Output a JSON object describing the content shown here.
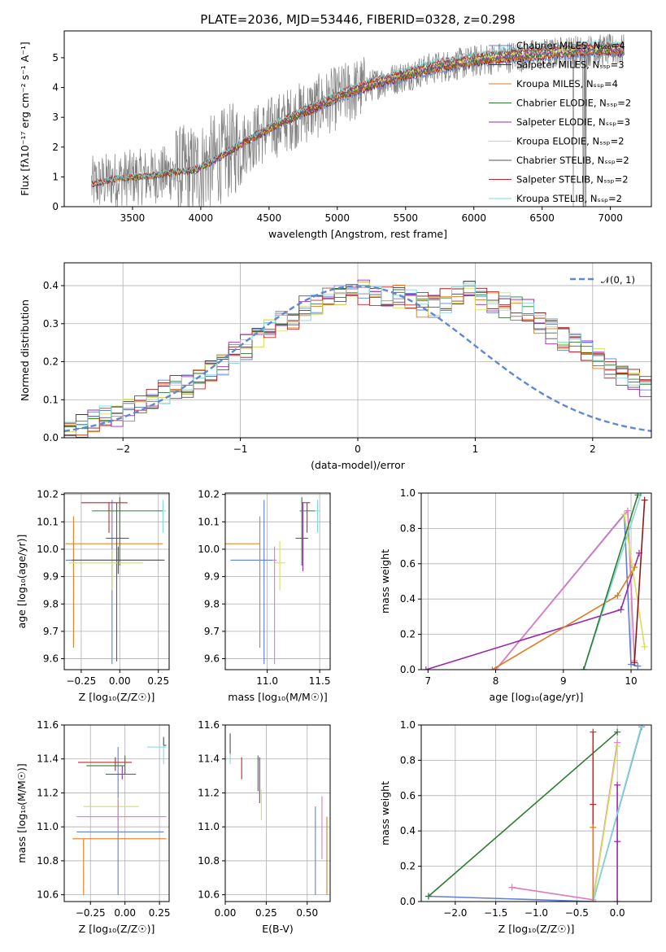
{
  "title": "PLATE=2036, MJD=53446, FIBERID=0328, z=0.298",
  "chart_data": [
    {
      "id": "spectrum",
      "type": "line",
      "xlabel": "wavelength [Angstrom, rest frame]",
      "ylabel": "Flux [fλ10⁻¹⁷ erg cm⁻² s⁻¹ A⁻¹]",
      "xlim": [
        3000,
        7300
      ],
      "ylim": [
        0,
        5.9
      ],
      "xticks": [
        3500,
        4000,
        4500,
        5000,
        5500,
        6000,
        6500,
        7000
      ],
      "yticks": [
        0,
        1,
        2,
        3,
        4,
        5
      ],
      "grid": false,
      "legend": "top-right",
      "data_range": [
        3200,
        7100
      ],
      "continuum_points": [
        [
          3200,
          0.75
        ],
        [
          3400,
          0.95
        ],
        [
          3600,
          1.0
        ],
        [
          3800,
          1.15
        ],
        [
          3950,
          1.2
        ],
        [
          4100,
          1.55
        ],
        [
          4300,
          2.1
        ],
        [
          4500,
          2.6
        ],
        [
          4700,
          3.05
        ],
        [
          4900,
          3.45
        ],
        [
          5100,
          3.85
        ],
        [
          5300,
          4.15
        ],
        [
          5500,
          4.4
        ],
        [
          5700,
          4.65
        ],
        [
          5900,
          4.8
        ],
        [
          6100,
          4.95
        ],
        [
          6300,
          5.05
        ],
        [
          6500,
          5.1
        ],
        [
          6700,
          5.2
        ],
        [
          6900,
          5.25
        ],
        [
          7100,
          5.25
        ]
      ],
      "series": [
        {
          "name": "Chabrier MILES, Nₛₛₚ=4",
          "color": "#5f7fd6"
        },
        {
          "name": "Salpeter MILES, Nₛₛₚ=3",
          "color": "#8b1a1a"
        },
        {
          "name": "Kroupa MILES, Nₛₛₚ=4",
          "color": "#e07b1f"
        },
        {
          "name": "Chabrier ELODIE, Nₛₛₚ=2",
          "color": "#2e7d32"
        },
        {
          "name": "Salpeter ELODIE, Nₛₛₚ=3",
          "color": "#9c27b0"
        },
        {
          "name": "Kroupa ELODIE, Nₛₛₚ=2",
          "color": "#d4e157"
        },
        {
          "name": "Chabrier STELIB, Nₛₛₚ=2",
          "color": "#555555"
        },
        {
          "name": "Salpeter STELIB, Nₛₛₚ=2",
          "color": "#c62828"
        },
        {
          "name": "Kroupa STELIB, Nₛₛₚ=2",
          "color": "#80d8d8"
        }
      ]
    },
    {
      "id": "residuals",
      "type": "histogram",
      "xlabel": "(data-model)/error",
      "ylabel": "Normed distribution",
      "xlim": [
        -2.5,
        2.5
      ],
      "ylim": [
        0,
        0.46
      ],
      "xticks": [
        -2,
        -1,
        0,
        1,
        2
      ],
      "yticks": [
        0.0,
        0.1,
        0.2,
        0.3,
        0.4
      ],
      "grid": true,
      "legend": "top-right",
      "reference": {
        "name": "𝒩(0, 1)",
        "color": "#5f87d6",
        "style": "dashed"
      },
      "bin_width": 0.1,
      "hist_colors": [
        "#5f7fd6",
        "#8b1a1a",
        "#e07b1f",
        "#2e7d32",
        "#9c27b0",
        "#d4e157",
        "#555555",
        "#c62828",
        "#80d8d8"
      ],
      "hist_profile": [
        0.02,
        0.03,
        0.04,
        0.05,
        0.06,
        0.07,
        0.09,
        0.1,
        0.12,
        0.13,
        0.14,
        0.16,
        0.18,
        0.2,
        0.22,
        0.24,
        0.26,
        0.28,
        0.3,
        0.32,
        0.34,
        0.35,
        0.36,
        0.37,
        0.37,
        0.38,
        0.38,
        0.37,
        0.37,
        0.36,
        0.35,
        0.34,
        0.36,
        0.37,
        0.38,
        0.37,
        0.36,
        0.35,
        0.34,
        0.33,
        0.3,
        0.28,
        0.26,
        0.24,
        0.23,
        0.21,
        0.19,
        0.17,
        0.16,
        0.14,
        0.12,
        0.11,
        0.1,
        0.09,
        0.08,
        0.07,
        0.06,
        0.05,
        0.05,
        0.04
      ]
    },
    {
      "id": "age_vs_Z",
      "type": "errorbar",
      "xlabel": "Z [log₁₀(Z/Z☉)]",
      "ylabel": "age  [log₁₀(age/yr)]",
      "xlim": [
        -0.36,
        0.32
      ],
      "ylim": [
        9.56,
        10.205
      ],
      "xticks": [
        -0.25,
        0.0,
        0.25
      ],
      "xticklabels": [
        "−0.25",
        "0.00",
        "0.25"
      ],
      "yticks": [
        9.6,
        9.7,
        9.8,
        9.9,
        10.0,
        10.1,
        10.2
      ],
      "grid": true,
      "points": [
        {
          "x": -0.05,
          "y": 9.96,
          "xerr": [
            0.3,
            0.33
          ],
          "yerr": [
            0.38,
            0.22
          ],
          "c": "#5f7fd6"
        },
        {
          "x": -0.07,
          "y": 10.17,
          "xerr": [
            0.18,
            0.12
          ],
          "yerr": [
            0.11,
            0.0
          ],
          "c": "#c62828"
        },
        {
          "x": -0.3,
          "y": 10.02,
          "xerr": [
            0.05,
            0.58
          ],
          "yerr": [
            0.38,
            0.1
          ],
          "c": "#e07b1f"
        },
        {
          "x": 0.0,
          "y": 10.14,
          "xerr": [
            0.18,
            0.28
          ],
          "yerr": [
            0.2,
            0.05
          ],
          "c": "#2e7d32"
        },
        {
          "x": -0.02,
          "y": 10.04,
          "xerr": [
            0.07,
            0.08
          ],
          "yerr": [
            0.45,
            0.13
          ],
          "c": "#9c27b0"
        },
        {
          "x": -0.05,
          "y": 9.95,
          "xerr": [
            0.28,
            0.2
          ],
          "yerr": [
            0.1,
            0.05
          ],
          "c": "#d4e157"
        },
        {
          "x": 0.28,
          "y": 10.14,
          "xerr": [
            0.0,
            0.02
          ],
          "yerr": [
            0.08,
            0.04
          ],
          "c": "#80d8d8"
        },
        {
          "x": -0.01,
          "y": 9.96,
          "xerr": [
            0.3,
            0.3
          ],
          "yerr": [
            0.05,
            0.05
          ],
          "c": "#555555"
        }
      ]
    },
    {
      "id": "age_vs_mass",
      "type": "errorbar",
      "xlabel": "mass [log₁₀(M/M☉)]",
      "ylabel": "",
      "xlim": [
        10.6,
        11.6
      ],
      "ylim": [
        9.56,
        10.205
      ],
      "xticks": [
        11.0,
        11.5
      ],
      "xticklabels": [
        "11.0",
        "11.5"
      ],
      "yticks": [
        9.6,
        9.7,
        9.8,
        9.9,
        10.0,
        10.1,
        10.2
      ],
      "grid": true,
      "points": [
        {
          "x": 10.97,
          "y": 9.96,
          "xerr": [
            0.32,
            0.1
          ],
          "yerr": [
            0.38,
            0.22
          ],
          "c": "#5f7fd6"
        },
        {
          "x": 11.38,
          "y": 10.17,
          "xerr": [
            0.05,
            0.03
          ],
          "yerr": [
            0.11,
            0.0
          ],
          "c": "#c62828"
        },
        {
          "x": 10.93,
          "y": 10.02,
          "xerr": [
            0.33,
            0.0
          ],
          "yerr": [
            0.38,
            0.1
          ],
          "c": "#e07b1f"
        },
        {
          "x": 11.33,
          "y": 10.14,
          "xerr": [
            0.02,
            0.13
          ],
          "yerr": [
            0.2,
            0.05
          ],
          "c": "#2e7d32"
        },
        {
          "x": 11.34,
          "y": 10.04,
          "xerr": [
            0.07,
            0.05
          ],
          "yerr": [
            0.12,
            0.13
          ],
          "c": "#9c27b0"
        },
        {
          "x": 11.12,
          "y": 9.95,
          "xerr": [
            0.05,
            0.05
          ],
          "yerr": [
            0.1,
            0.08
          ],
          "c": "#d4e157"
        },
        {
          "x": 11.07,
          "y": 9.96,
          "xerr": [
            0.02,
            0.02
          ],
          "yerr": [
            0.38,
            0.05
          ],
          "c": "#e377c2"
        },
        {
          "x": 11.48,
          "y": 10.14,
          "xerr": [
            0.03,
            0.02
          ],
          "yerr": [
            0.08,
            0.04
          ],
          "c": "#80d8d8"
        }
      ]
    },
    {
      "id": "weight_vs_age",
      "type": "line",
      "xlabel": "age  [log₁₀(age/yr)]",
      "ylabel": "mass weight",
      "xlim": [
        6.9,
        10.3
      ],
      "ylim": [
        0,
        1.0
      ],
      "xticks": [
        7,
        8,
        9,
        10
      ],
      "xticklabels": [
        "7",
        "8",
        "9",
        "10"
      ],
      "yticks": [
        0.0,
        0.2,
        0.4,
        0.6,
        0.8,
        1.0
      ],
      "grid": true,
      "lines": [
        {
          "c": "#5f7fd6",
          "pts": [
            [
              8.0,
              0.0
            ],
            [
              9.9,
              0.88
            ],
            [
              10.0,
              0.03
            ],
            [
              10.1,
              0.02
            ]
          ]
        },
        {
          "c": "#e377c2",
          "pts": [
            [
              8.0,
              0.0
            ],
            [
              9.95,
              0.9
            ],
            [
              10.05,
              0.05
            ]
          ]
        },
        {
          "c": "#9c27b0",
          "pts": [
            [
              6.97,
              0.0
            ],
            [
              9.85,
              0.34
            ],
            [
              10.12,
              0.66
            ]
          ]
        },
        {
          "c": "#e07b1f",
          "pts": [
            [
              7.95,
              0.0
            ],
            [
              9.8,
              0.42
            ],
            [
              10.05,
              0.58
            ]
          ]
        },
        {
          "c": "#d4e157",
          "pts": [
            [
              9.9,
              0.88
            ],
            [
              10.2,
              0.13
            ]
          ]
        },
        {
          "c": "#80d8d8",
          "pts": [
            [
              9.3,
              0.0
            ],
            [
              10.15,
              1.0
            ]
          ]
        },
        {
          "c": "#8b1a1a",
          "pts": [
            [
              10.05,
              0.04
            ],
            [
              10.2,
              0.96
            ]
          ]
        },
        {
          "c": "#2e7d32",
          "pts": [
            [
              9.3,
              0.0
            ],
            [
              10.1,
              0.99
            ]
          ]
        }
      ]
    },
    {
      "id": "mass_vs_Z",
      "type": "errorbar",
      "xlabel": "Z [log₁₀(Z/Z☉)]",
      "ylabel": "mass [log₁₀(M/M☉)]",
      "xlim": [
        -0.44,
        0.32
      ],
      "ylim": [
        10.56,
        11.6
      ],
      "xticks": [
        -0.25,
        0.0,
        0.25
      ],
      "xticklabels": [
        "−0.25",
        "0.00",
        "0.25"
      ],
      "yticks": [
        10.6,
        10.8,
        11.0,
        11.2,
        11.4,
        11.6
      ],
      "grid": true,
      "points": [
        {
          "x": -0.05,
          "y": 10.97,
          "xerr": [
            0.3,
            0.33
          ],
          "yerr": [
            0.37,
            0.5
          ],
          "c": "#5f7fd6"
        },
        {
          "x": -0.07,
          "y": 11.38,
          "xerr": [
            0.27,
            0.12
          ],
          "yerr": [
            0.05,
            0.03
          ],
          "c": "#c62828"
        },
        {
          "x": -0.3,
          "y": 10.93,
          "xerr": [
            0.08,
            0.6
          ],
          "yerr": [
            0.33,
            0.0
          ],
          "c": "#e07b1f"
        },
        {
          "x": 0.0,
          "y": 11.36,
          "xerr": [
            0.28,
            0.0
          ],
          "yerr": [
            0.05,
            0.06
          ],
          "c": "#2e7d32"
        },
        {
          "x": -0.02,
          "y": 11.31,
          "xerr": [
            0.12,
            0.1
          ],
          "yerr": [
            0.03,
            0.05
          ],
          "c": "#9c27b0"
        },
        {
          "x": -0.05,
          "y": 11.12,
          "xerr": [
            0.25,
            0.15
          ],
          "yerr": [
            0.05,
            0.05
          ],
          "c": "#d4e157"
        },
        {
          "x": -0.05,
          "y": 11.06,
          "xerr": [
            0.3,
            0.35
          ],
          "yerr": [
            0.1,
            0.1
          ],
          "c": "#e377c2"
        },
        {
          "x": 0.28,
          "y": 11.47,
          "xerr": [
            0.12,
            0.02
          ],
          "yerr": [
            0.1,
            0.05
          ],
          "c": "#80d8d8"
        },
        {
          "x": 0.28,
          "y": 11.48,
          "xerr": [
            0.0,
            0.02
          ],
          "yerr": [
            0.0,
            0.05
          ],
          "c": "#555555"
        }
      ]
    },
    {
      "id": "mass_vs_EBV",
      "type": "errorbar",
      "xlabel": "E(B-V)",
      "ylabel": "",
      "xlim": [
        0.0,
        0.64
      ],
      "ylim": [
        10.56,
        11.6
      ],
      "xticks": [
        0.0,
        0.25,
        0.5
      ],
      "xticklabels": [
        "0.00",
        "0.25",
        "0.50"
      ],
      "yticks": [
        10.6,
        10.8,
        11.0,
        11.2,
        11.4,
        11.6
      ],
      "grid": true,
      "points": [
        {
          "x": 0.55,
          "y": 10.97,
          "xerr": [
            0.0,
            0.0
          ],
          "yerr": [
            0.37,
            0.15
          ],
          "c": "#5f7fd6"
        },
        {
          "x": 0.1,
          "y": 11.38,
          "xerr": [
            0.0,
            0.0
          ],
          "yerr": [
            0.1,
            0.03
          ],
          "c": "#c62828"
        },
        {
          "x": 0.62,
          "y": 10.93,
          "xerr": [
            0.0,
            0.0
          ],
          "yerr": [
            0.33,
            0.13
          ],
          "c": "#e07b1f"
        },
        {
          "x": 0.2,
          "y": 11.36,
          "xerr": [
            0.0,
            0.0
          ],
          "yerr": [
            0.15,
            0.06
          ],
          "c": "#2e7d32"
        },
        {
          "x": 0.21,
          "y": 11.31,
          "xerr": [
            0.0,
            0.0
          ],
          "yerr": [
            0.17,
            0.1
          ],
          "c": "#9c27b0"
        },
        {
          "x": 0.22,
          "y": 11.12,
          "xerr": [
            0.0,
            0.0
          ],
          "yerr": [
            0.08,
            0.1
          ],
          "c": "#d4e157"
        },
        {
          "x": 0.59,
          "y": 11.06,
          "xerr": [
            0.0,
            0.0
          ],
          "yerr": [
            0.25,
            0.12
          ],
          "c": "#e377c2"
        },
        {
          "x": 0.03,
          "y": 11.47,
          "xerr": [
            0.0,
            0.0
          ],
          "yerr": [
            0.1,
            0.08
          ],
          "c": "#80d8d8"
        },
        {
          "x": 0.03,
          "y": 11.48,
          "xerr": [
            0.0,
            0.0
          ],
          "yerr": [
            0.05,
            0.07
          ],
          "c": "#555555"
        }
      ]
    },
    {
      "id": "weight_vs_Z",
      "type": "line",
      "xlabel": "Z [log₁₀(Z/Z☉)]",
      "ylabel": "mass weight",
      "xlim": [
        -2.42,
        0.42
      ],
      "ylim": [
        0,
        1.0
      ],
      "xticks": [
        -2.0,
        -1.5,
        -1.0,
        -0.5,
        0.0
      ],
      "xticklabels": [
        "−2.0",
        "−1.5",
        "−1.0",
        "−0.5",
        "0.0"
      ],
      "yticks": [
        0.0,
        0.2,
        0.4,
        0.6,
        0.8,
        1.0
      ],
      "grid": true,
      "lines": [
        {
          "c": "#5f7fd6",
          "pts": [
            [
              -2.33,
              0.03
            ],
            [
              -0.3,
              0.0
            ],
            [
              0.3,
              0.99
            ]
          ]
        },
        {
          "c": "#e377c2",
          "pts": [
            [
              -1.3,
              0.08
            ],
            [
              -0.3,
              0.01
            ],
            [
              0.0,
              0.9
            ]
          ]
        },
        {
          "c": "#2e7d32",
          "pts": [
            [
              -2.33,
              0.03
            ],
            [
              0.0,
              0.96
            ]
          ]
        },
        {
          "c": "#9c27b0",
          "pts": [
            [
              0.0,
              0.0
            ],
            [
              0.0,
              0.34
            ],
            [
              0.0,
              0.66
            ]
          ]
        },
        {
          "c": "#c62828",
          "pts": [
            [
              -0.3,
              0.0
            ],
            [
              -0.3,
              0.55
            ],
            [
              -0.3,
              0.96
            ]
          ]
        },
        {
          "c": "#d4e157",
          "pts": [
            [
              -0.3,
              0.0
            ],
            [
              0.0,
              0.88
            ]
          ]
        },
        {
          "c": "#80d8d8",
          "pts": [
            [
              -0.3,
              0.0
            ],
            [
              0.3,
              1.0
            ]
          ]
        },
        {
          "c": "#e07b1f",
          "pts": [
            [
              -0.3,
              0.0
            ],
            [
              -0.3,
              0.42
            ]
          ]
        }
      ]
    }
  ]
}
